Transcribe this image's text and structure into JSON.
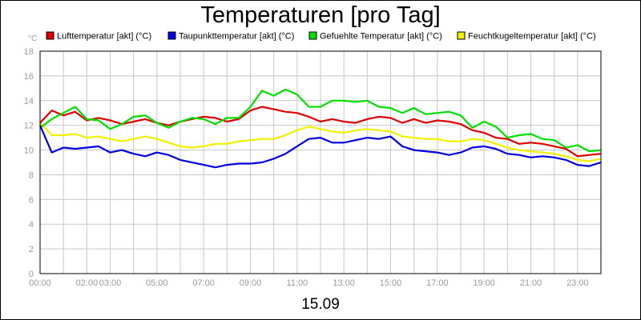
{
  "chart_data": {
    "type": "line",
    "title": "Temperaturen [pro Tag]",
    "date_label": "15.09",
    "y_unit": "°C",
    "ylim": [
      0,
      18
    ],
    "y_ticks": [
      "0",
      "2",
      "4",
      "6",
      "8",
      "10",
      "12",
      "14",
      "16",
      "18"
    ],
    "xlim": [
      "00:00",
      "24:00"
    ],
    "x_ticks": [
      {
        "t": "00:00",
        "label": "00:00"
      },
      {
        "t": "02:00",
        "label": "02:00"
      },
      {
        "t": "03:00",
        "label": "03:00"
      },
      {
        "t": "05:00",
        "label": "05:00"
      },
      {
        "t": "07:00",
        "label": "07:00"
      },
      {
        "t": "09:00",
        "label": "09:00"
      },
      {
        "t": "11:00",
        "label": "11:00"
      },
      {
        "t": "13:00",
        "label": "13:00"
      },
      {
        "t": "15:00",
        "label": "15:00"
      },
      {
        "t": "17:00",
        "label": "17:00"
      },
      {
        "t": "19:00",
        "label": "19:00"
      },
      {
        "t": "21:00",
        "label": "21:00"
      },
      {
        "t": "23:00",
        "label": "23:00"
      }
    ],
    "grid": true,
    "legend_position": "top",
    "x": [
      "00:00",
      "00:30",
      "01:00",
      "01:30",
      "02:00",
      "02:30",
      "03:00",
      "03:30",
      "04:00",
      "04:30",
      "05:00",
      "05:30",
      "06:00",
      "06:30",
      "07:00",
      "07:30",
      "08:00",
      "08:30",
      "09:00",
      "09:30",
      "10:00",
      "10:30",
      "11:00",
      "11:30",
      "12:00",
      "12:30",
      "13:00",
      "13:30",
      "14:00",
      "14:30",
      "15:00",
      "15:30",
      "16:00",
      "16:30",
      "17:00",
      "17:30",
      "18:00",
      "18:30",
      "19:00",
      "19:30",
      "20:00",
      "20:30",
      "21:00",
      "21:30",
      "22:00",
      "22:30",
      "23:00",
      "23:30",
      "24:00"
    ],
    "series": [
      {
        "name": "Lufttemperatur [akt] (°C)",
        "color": "#e00000",
        "values": [
          12.2,
          13.2,
          12.8,
          13.1,
          12.4,
          12.6,
          12.4,
          12.1,
          12.3,
          12.5,
          12.2,
          12.0,
          12.3,
          12.5,
          12.7,
          12.6,
          12.3,
          12.5,
          13.2,
          13.5,
          13.3,
          13.1,
          13.0,
          12.7,
          12.3,
          12.5,
          12.3,
          12.2,
          12.5,
          12.7,
          12.6,
          12.2,
          12.5,
          12.2,
          12.4,
          12.3,
          12.1,
          11.6,
          11.4,
          11.0,
          10.9,
          10.5,
          10.6,
          10.5,
          10.3,
          10.1,
          9.5,
          9.6,
          9.7
        ]
      },
      {
        "name": "Taupunkttemperatur [akt] (°C)",
        "color": "#0000e0",
        "values": [
          12.0,
          9.8,
          10.2,
          10.1,
          10.2,
          10.3,
          9.8,
          10.0,
          9.7,
          9.5,
          9.8,
          9.6,
          9.2,
          9.0,
          8.8,
          8.6,
          8.8,
          8.9,
          8.9,
          9.0,
          9.3,
          9.7,
          10.3,
          10.9,
          11.0,
          10.6,
          10.6,
          10.8,
          11.0,
          10.9,
          11.1,
          10.3,
          10.0,
          9.9,
          9.8,
          9.6,
          9.8,
          10.2,
          10.3,
          10.1,
          9.7,
          9.6,
          9.4,
          9.5,
          9.4,
          9.2,
          8.8,
          8.7,
          9.0
        ]
      },
      {
        "name": "Gefuehlte Temperatur [akt] (°C)",
        "color": "#00e000",
        "values": [
          11.8,
          12.5,
          13.0,
          13.5,
          12.5,
          12.4,
          11.7,
          12.1,
          12.7,
          12.8,
          12.2,
          11.8,
          12.3,
          12.6,
          12.5,
          12.1,
          12.6,
          12.6,
          13.5,
          14.8,
          14.4,
          14.9,
          14.5,
          13.5,
          13.5,
          14.0,
          14.0,
          13.9,
          14.0,
          13.5,
          13.4,
          13.0,
          13.4,
          12.9,
          13.0,
          13.1,
          12.8,
          11.8,
          12.3,
          11.9,
          11.0,
          11.2,
          11.3,
          10.9,
          10.8,
          10.2,
          10.4,
          9.9,
          10.0
        ]
      },
      {
        "name": "Feuchtkugeltemperatur [akt] (°C)",
        "color": "#f0f000",
        "values": [
          12.2,
          11.2,
          11.2,
          11.3,
          11.0,
          11.1,
          10.9,
          10.7,
          10.9,
          11.1,
          10.9,
          10.6,
          10.3,
          10.2,
          10.3,
          10.5,
          10.5,
          10.7,
          10.8,
          10.9,
          10.9,
          11.2,
          11.6,
          11.9,
          11.7,
          11.5,
          11.4,
          11.6,
          11.7,
          11.6,
          11.5,
          11.1,
          11.0,
          10.9,
          10.9,
          10.7,
          10.7,
          10.9,
          10.8,
          10.5,
          10.2,
          10.0,
          9.9,
          9.8,
          9.7,
          9.5,
          9.2,
          9.1,
          9.3
        ]
      }
    ]
  }
}
